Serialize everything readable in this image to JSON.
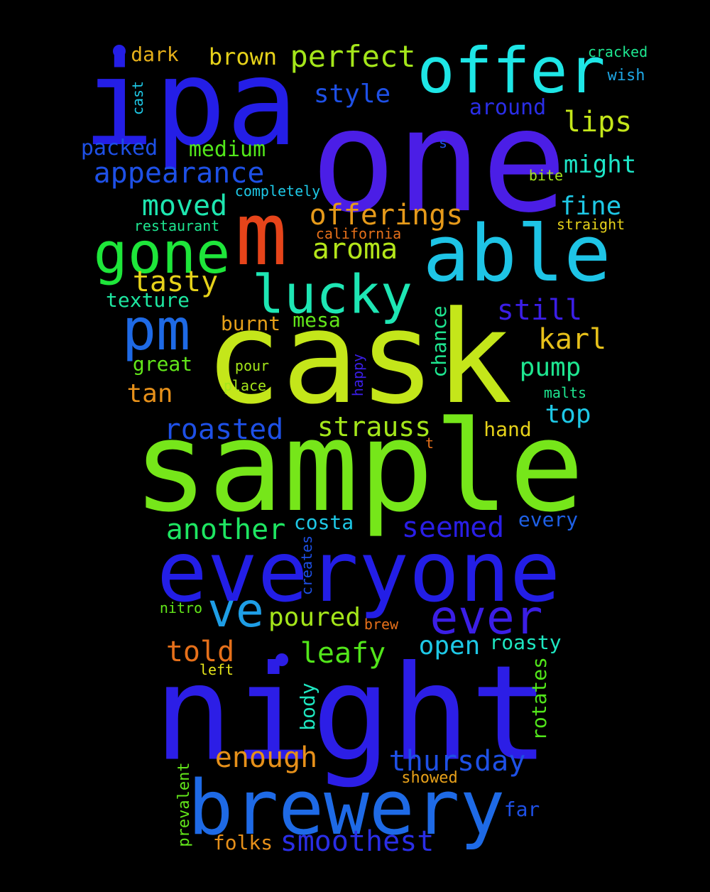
{
  "words": [
    {
      "id": "one",
      "text": "one",
      "color": "#4b1ee6",
      "vertical": false
    },
    {
      "id": "ipa",
      "text": "ipa",
      "color": "#241ee6",
      "vertical": false
    },
    {
      "id": "sample",
      "text": "sample",
      "color": "#76e61a",
      "vertical": false
    },
    {
      "id": "cask",
      "text": "cask",
      "color": "#c4e61a",
      "vertical": false
    },
    {
      "id": "night",
      "text": "night",
      "color": "#2c1ee6",
      "vertical": false
    },
    {
      "id": "everyone",
      "text": "everyone",
      "color": "#231ee6",
      "vertical": false
    },
    {
      "id": "brewery",
      "text": "brewery",
      "color": "#1e6ae6",
      "vertical": false
    },
    {
      "id": "able",
      "text": "able",
      "color": "#1ec4e6",
      "vertical": false
    },
    {
      "id": "m",
      "text": "m",
      "color": "#e6441a",
      "vertical": false
    },
    {
      "id": "offer",
      "text": "offer",
      "color": "#1ee6e6",
      "vertical": false
    },
    {
      "id": "pm",
      "text": "pm",
      "color": "#1e6ae6",
      "vertical": false
    },
    {
      "id": "gone",
      "text": "gone",
      "color": "#1ee63a",
      "vertical": false
    },
    {
      "id": "lucky",
      "text": "lucky",
      "color": "#1ee6b4",
      "vertical": false
    },
    {
      "id": "ever",
      "text": "ever",
      "color": "#3b1ee6",
      "vertical": false
    },
    {
      "id": "ve",
      "text": "ve",
      "color": "#1e9ee6",
      "vertical": false
    },
    {
      "id": "offerings",
      "text": "offerings",
      "color": "#e69a1a",
      "vertical": false
    },
    {
      "id": "appearance",
      "text": "appearance",
      "color": "#1e50e6",
      "vertical": false
    },
    {
      "id": "perfect",
      "text": "perfect",
      "color": "#a4e61a",
      "vertical": false
    },
    {
      "id": "aroma",
      "text": "aroma",
      "color": "#b4e61a",
      "vertical": false
    },
    {
      "id": "moved",
      "text": "moved",
      "color": "#1ee6b0",
      "vertical": false
    },
    {
      "id": "tasty",
      "text": "tasty",
      "color": "#e6d21a",
      "vertical": false
    },
    {
      "id": "still",
      "text": "still",
      "color": "#3b1ee6",
      "vertical": false
    },
    {
      "id": "karl",
      "text": "karl",
      "color": "#e6c01a",
      "vertical": false
    },
    {
      "id": "strauss",
      "text": "strauss",
      "color": "#a4e61a",
      "vertical": false
    },
    {
      "id": "roasted",
      "text": "roasted",
      "color": "#1e50e6",
      "vertical": false
    },
    {
      "id": "another",
      "text": "another",
      "color": "#1ee662",
      "vertical": false
    },
    {
      "id": "seemed",
      "text": "seemed",
      "color": "#2a1ee6",
      "vertical": false
    },
    {
      "id": "thursday",
      "text": "thursday",
      "color": "#1e50e6",
      "vertical": false
    },
    {
      "id": "smoothest",
      "text": "smoothest",
      "color": "#2a2ee6",
      "vertical": false
    },
    {
      "id": "told",
      "text": "told",
      "color": "#e6701a",
      "vertical": false
    },
    {
      "id": "leafy",
      "text": "leafy",
      "color": "#52e61a",
      "vertical": false
    },
    {
      "id": "open",
      "text": "open",
      "color": "#1ec8e6",
      "vertical": false
    },
    {
      "id": "enough",
      "text": "enough",
      "color": "#e6901a",
      "vertical": false
    },
    {
      "id": "poured",
      "text": "poured",
      "color": "#a4e61a",
      "vertical": false
    },
    {
      "id": "lips",
      "text": "lips",
      "color": "#c4e61a",
      "vertical": false
    },
    {
      "id": "style",
      "text": "style",
      "color": "#1e50e6",
      "vertical": false
    },
    {
      "id": "brown",
      "text": "brown",
      "color": "#e6d21a",
      "vertical": false
    },
    {
      "id": "pump",
      "text": "pump",
      "color": "#1ee690",
      "vertical": false
    },
    {
      "id": "top",
      "text": "top",
      "color": "#1ec8e6",
      "vertical": false
    },
    {
      "id": "tan",
      "text": "tan",
      "color": "#e6901a",
      "vertical": false
    },
    {
      "id": "fine",
      "text": "fine",
      "color": "#1ec8e6",
      "vertical": false
    },
    {
      "id": "might",
      "text": "might",
      "color": "#1ee6c8",
      "vertical": false
    },
    {
      "id": "medium",
      "text": "medium",
      "color": "#52e61a",
      "vertical": false
    },
    {
      "id": "packed",
      "text": "packed",
      "color": "#1e50e6",
      "vertical": false
    },
    {
      "id": "around",
      "text": "around",
      "color": "#2a2ee6",
      "vertical": false
    },
    {
      "id": "dark",
      "text": "dark",
      "color": "#e6b01a",
      "vertical": false
    },
    {
      "id": "texture",
      "text": "texture",
      "color": "#1ee6a0",
      "vertical": false
    },
    {
      "id": "burnt",
      "text": "burnt",
      "color": "#e6a01a",
      "vertical": false
    },
    {
      "id": "mesa",
      "text": "mesa",
      "color": "#62e61a",
      "vertical": false
    },
    {
      "id": "great",
      "text": "great",
      "color": "#62e61a",
      "vertical": false
    },
    {
      "id": "costa",
      "text": "costa",
      "color": "#1ec8e6",
      "vertical": false
    },
    {
      "id": "every",
      "text": "every",
      "color": "#1e60e6",
      "vertical": false
    },
    {
      "id": "folks",
      "text": "folks",
      "color": "#e6901a",
      "vertical": false
    },
    {
      "id": "roasty",
      "text": "roasty",
      "color": "#1ee6c0",
      "vertical": false
    },
    {
      "id": "hand",
      "text": "hand",
      "color": "#e6d21a",
      "vertical": false
    },
    {
      "id": "far",
      "text": "far",
      "color": "#1e50e6",
      "vertical": false
    },
    {
      "id": "chance",
      "text": "chance",
      "color": "#1ee690",
      "vertical": true
    },
    {
      "id": "body",
      "text": "body",
      "color": "#1ee6c0",
      "vertical": true
    },
    {
      "id": "rotates",
      "text": "rotates",
      "color": "#52e61a",
      "vertical": true
    },
    {
      "id": "cracked",
      "text": "cracked",
      "color": "#1ee690",
      "vertical": false
    },
    {
      "id": "wish",
      "text": "wish",
      "color": "#1ea8e6",
      "vertical": false
    },
    {
      "id": "bite",
      "text": "bite",
      "color": "#a4e61a",
      "vertical": false
    },
    {
      "id": "completely",
      "text": "completely",
      "color": "#1ec8e6",
      "vertical": false
    },
    {
      "id": "restaurant",
      "text": "restaurant",
      "color": "#1ee690",
      "vertical": false
    },
    {
      "id": "california",
      "text": "california",
      "color": "#e6701a",
      "vertical": false
    },
    {
      "id": "straight",
      "text": "straight",
      "color": "#e6d21a",
      "vertical": false
    },
    {
      "id": "pour",
      "text": "pour",
      "color": "#a4e61a",
      "vertical": false
    },
    {
      "id": "place",
      "text": "place",
      "color": "#a4e61a",
      "vertical": false
    },
    {
      "id": "malts",
      "text": "malts",
      "color": "#1ee690",
      "vertical": false
    },
    {
      "id": "nitro",
      "text": "nitro",
      "color": "#62e61a",
      "vertical": false
    },
    {
      "id": "brew",
      "text": "brew",
      "color": "#e6701a",
      "vertical": false
    },
    {
      "id": "left",
      "text": "left",
      "color": "#e6e61a",
      "vertical": false
    },
    {
      "id": "showed",
      "text": "showed",
      "color": "#e6a01a",
      "vertical": false
    },
    {
      "id": "s",
      "text": "s",
      "color": "#1e50e6",
      "vertical": false
    },
    {
      "id": "t",
      "text": "t",
      "color": "#e6701a",
      "vertical": false
    },
    {
      "id": "cast",
      "text": "cast",
      "color": "#1ec8e6",
      "vertical": true
    },
    {
      "id": "happy",
      "text": "happy",
      "color": "#3b1ee6",
      "vertical": true
    },
    {
      "id": "creates",
      "text": "creates",
      "color": "#1e50e6",
      "vertical": true
    },
    {
      "id": "prevalent",
      "text": "prevalent",
      "color": "#62e61a",
      "vertical": true
    }
  ]
}
